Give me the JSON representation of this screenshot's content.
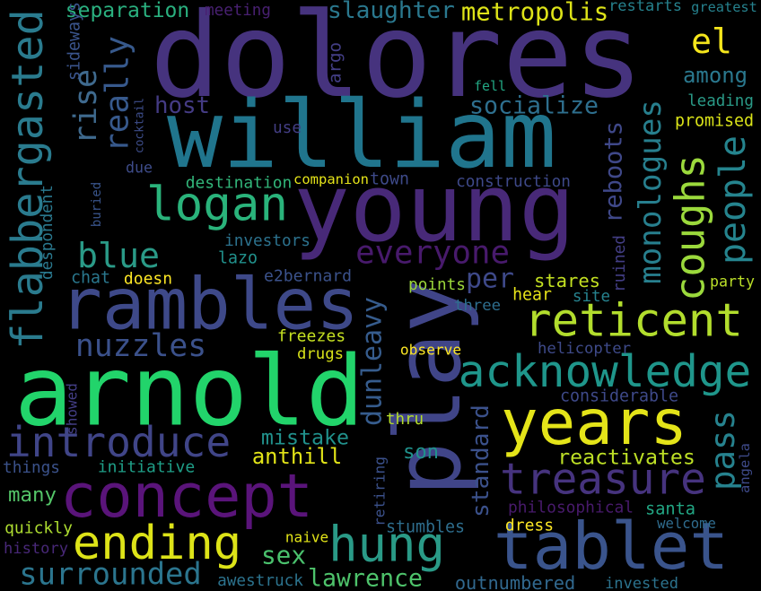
{
  "background": "#000000",
  "palette": [
    "#440154",
    "#482777",
    "#3f4a8a",
    "#31678e",
    "#26838f",
    "#1f9d8a",
    "#6cce5a",
    "#b6de2b",
    "#fee825"
  ],
  "words": [
    {
      "text": "dolores",
      "color": "#46337e"
    },
    {
      "text": "william",
      "color": "#20758d"
    },
    {
      "text": "young",
      "color": "#482978"
    },
    {
      "text": "logan",
      "color": "#2ab37b"
    },
    {
      "text": "play",
      "color": "#404588"
    },
    {
      "text": "arnold",
      "color": "#22d46b"
    },
    {
      "text": "rambles",
      "color": "#3e4989"
    },
    {
      "text": "years",
      "color": "#e4e419"
    },
    {
      "text": "concept",
      "color": "#5a147a"
    },
    {
      "text": "tablet",
      "color": "#3a548c"
    },
    {
      "text": "introduce",
      "color": "#404588"
    },
    {
      "text": "acknowledge",
      "color": "#1f968b"
    },
    {
      "text": "reticent",
      "color": "#b2dd2d"
    },
    {
      "text": "treasure",
      "color": "#46337e"
    },
    {
      "text": "ending",
      "color": "#dde318"
    },
    {
      "text": "hung",
      "color": "#2a9a87"
    },
    {
      "text": "flabbergasted",
      "color": "#2a7b8e"
    },
    {
      "text": "monologues",
      "color": "#277f8e"
    },
    {
      "text": "coughs",
      "color": "#9bd93c"
    },
    {
      "text": "everyone",
      "color": "#481a6c"
    },
    {
      "text": "rise",
      "color": "#3f6a8e"
    },
    {
      "text": "really",
      "color": "#37598c"
    },
    {
      "text": "el",
      "color": "#f5e61c"
    },
    {
      "text": "people",
      "color": "#25848e"
    },
    {
      "text": "blue",
      "color": "#2a9a87"
    },
    {
      "text": "nuzzles",
      "color": "#3b518b"
    },
    {
      "text": "sex",
      "color": "#4ac16d"
    },
    {
      "text": "surrounded",
      "color": "#2b758e"
    },
    {
      "text": "lawrence",
      "color": "#4ec36b"
    },
    {
      "text": "dunleavy",
      "color": "#365c8d"
    },
    {
      "text": "pass",
      "color": "#26828e"
    },
    {
      "text": "standard",
      "color": "#3b518b"
    },
    {
      "text": "santa",
      "color": "#22a784"
    },
    {
      "text": "reactivates",
      "color": "#bddf26"
    },
    {
      "text": "reboots",
      "color": "#3f4889"
    },
    {
      "text": "per",
      "color": "#3e4989"
    },
    {
      "text": "stares",
      "color": "#c3e021"
    },
    {
      "text": "socialize",
      "color": "#2e6f8e"
    },
    {
      "text": "slaughter",
      "color": "#2a788e"
    },
    {
      "text": "metropolis",
      "color": "#dde318"
    },
    {
      "text": "separation",
      "color": "#2ab07f"
    },
    {
      "text": "meeting",
      "color": "#482071"
    },
    {
      "text": "restarts",
      "color": "#26828e"
    },
    {
      "text": "greatest",
      "color": "#26828e"
    },
    {
      "text": "sideways",
      "color": "#3a548c"
    },
    {
      "text": "argo",
      "color": "#433e85"
    },
    {
      "text": "host",
      "color": "#443b84"
    },
    {
      "text": "lazo",
      "color": "#21918c"
    },
    {
      "text": "due",
      "color": "#3e4c8a"
    },
    {
      "text": "destination",
      "color": "#32b67a"
    },
    {
      "text": "companion",
      "color": "#e5e419"
    },
    {
      "text": "town",
      "color": "#3e4a89"
    },
    {
      "text": "construction",
      "color": "#3e4989"
    },
    {
      "text": "among",
      "color": "#2a788e"
    },
    {
      "text": "leading",
      "color": "#2a9a87"
    },
    {
      "text": "promised",
      "color": "#dae319"
    },
    {
      "text": "fell",
      "color": "#22a884"
    },
    {
      "text": "use",
      "color": "#433e85"
    },
    {
      "text": "cocktail",
      "color": "#3d4d8a"
    },
    {
      "text": "buried",
      "color": "#39558c"
    },
    {
      "text": "despondent",
      "color": "#2a788e"
    },
    {
      "text": "investors",
      "color": "#2c728e"
    },
    {
      "text": "chat",
      "color": "#2a788e"
    },
    {
      "text": "doesn",
      "color": "#fde725"
    },
    {
      "text": "e2bernard",
      "color": "#3b528b"
    },
    {
      "text": "points",
      "color": "#9dd93b"
    },
    {
      "text": "three",
      "color": "#2e6e8e"
    },
    {
      "text": "hear",
      "color": "#e7e419"
    },
    {
      "text": "site",
      "color": "#26828e"
    },
    {
      "text": "party",
      "color": "#bade28"
    },
    {
      "text": "ruined",
      "color": "#433e85"
    },
    {
      "text": "freezes",
      "color": "#c5e021"
    },
    {
      "text": "drugs",
      "color": "#d8e219"
    },
    {
      "text": "observe",
      "color": "#fde725"
    },
    {
      "text": "helicopter",
      "color": "#3e4a89"
    },
    {
      "text": "considerable",
      "color": "#3e4989"
    },
    {
      "text": "mistake",
      "color": "#21918c"
    },
    {
      "text": "anthill",
      "color": "#e2e418"
    },
    {
      "text": "thru",
      "color": "#b5de2b"
    },
    {
      "text": "showed",
      "color": "#433e85"
    },
    {
      "text": "son",
      "color": "#20928c"
    },
    {
      "text": "things",
      "color": "#3b528b"
    },
    {
      "text": "initiative",
      "color": "#1f9f88"
    },
    {
      "text": "many",
      "color": "#54c568"
    },
    {
      "text": "angela",
      "color": "#3e4a89"
    },
    {
      "text": "retiring",
      "color": "#3b518b"
    },
    {
      "text": "philosophical",
      "color": "#481a6c"
    },
    {
      "text": "dress",
      "color": "#fde725"
    },
    {
      "text": "welcome",
      "color": "#2f6c8e"
    },
    {
      "text": "quickly",
      "color": "#addc30"
    },
    {
      "text": "stumbles",
      "color": "#2e6e8e"
    },
    {
      "text": "history",
      "color": "#482878"
    },
    {
      "text": "naive",
      "color": "#e2e418"
    },
    {
      "text": "outnumbered",
      "color": "#31688e"
    },
    {
      "text": "awestruck",
      "color": "#2c738e"
    },
    {
      "text": "invested",
      "color": "#2c738e"
    }
  ]
}
